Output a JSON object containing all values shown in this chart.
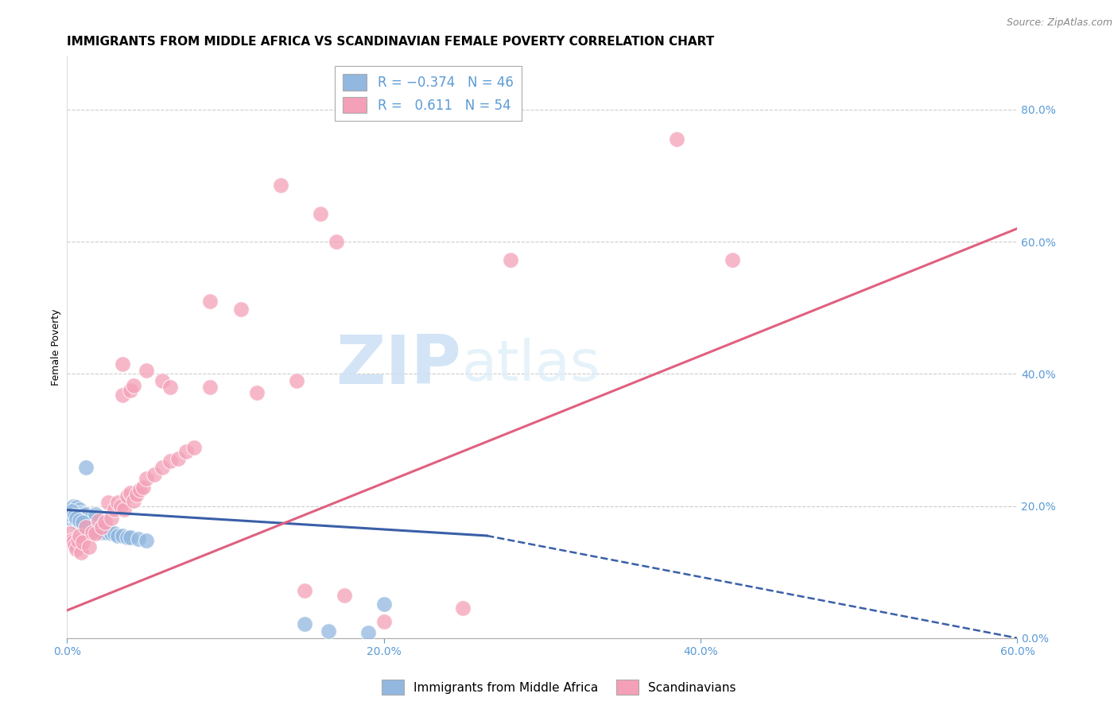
{
  "title": "IMMIGRANTS FROM MIDDLE AFRICA VS SCANDINAVIAN FEMALE POVERTY CORRELATION CHART",
  "source": "Source: ZipAtlas.com",
  "ylabel": "Female Poverty",
  "xlim": [
    0.0,
    0.6
  ],
  "ylim": [
    0.0,
    0.88
  ],
  "ytick_right_values": [
    0.0,
    0.2,
    0.4,
    0.6,
    0.8
  ],
  "ytick_right_labels": [
    "0.0%",
    "20.0%",
    "40.0%",
    "60.0%",
    "80.0%"
  ],
  "xtick_values": [
    0.0,
    0.2,
    0.4,
    0.6
  ],
  "xtick_labels": [
    "0.0%",
    "20.0%",
    "40.0%",
    "60.0%"
  ],
  "watermark_zip": "ZIP",
  "watermark_atlas": "atlas",
  "blue_color": "#92b8e0",
  "pink_color": "#f4a0b8",
  "blue_line_color": "#3a5fa8",
  "pink_line_color": "#e06080",
  "blue_dots": [
    [
      0.002,
      0.195
    ],
    [
      0.003,
      0.195
    ],
    [
      0.004,
      0.2
    ],
    [
      0.005,
      0.195
    ],
    [
      0.006,
      0.198
    ],
    [
      0.007,
      0.19
    ],
    [
      0.008,
      0.195
    ],
    [
      0.009,
      0.19
    ],
    [
      0.01,
      0.188
    ],
    [
      0.012,
      0.188
    ],
    [
      0.015,
      0.182
    ],
    [
      0.018,
      0.188
    ],
    [
      0.002,
      0.185
    ],
    [
      0.003,
      0.18
    ],
    [
      0.004,
      0.178
    ],
    [
      0.005,
      0.18
    ],
    [
      0.006,
      0.175
    ],
    [
      0.007,
      0.178
    ],
    [
      0.008,
      0.172
    ],
    [
      0.01,
      0.17
    ],
    [
      0.012,
      0.165
    ],
    [
      0.014,
      0.168
    ],
    [
      0.016,
      0.165
    ],
    [
      0.018,
      0.162
    ],
    [
      0.02,
      0.162
    ],
    [
      0.022,
      0.16
    ],
    [
      0.025,
      0.16
    ],
    [
      0.028,
      0.158
    ],
    [
      0.03,
      0.158
    ],
    [
      0.032,
      0.155
    ],
    [
      0.035,
      0.155
    ],
    [
      0.038,
      0.152
    ],
    [
      0.04,
      0.152
    ],
    [
      0.045,
      0.15
    ],
    [
      0.05,
      0.148
    ],
    [
      0.012,
      0.258
    ],
    [
      0.002,
      0.188
    ],
    [
      0.003,
      0.192
    ],
    [
      0.005,
      0.185
    ],
    [
      0.006,
      0.182
    ],
    [
      0.008,
      0.178
    ],
    [
      0.01,
      0.175
    ],
    [
      0.15,
      0.022
    ],
    [
      0.2,
      0.052
    ],
    [
      0.165,
      0.01
    ],
    [
      0.19,
      0.008
    ]
  ],
  "pink_dots": [
    [
      0.002,
      0.158
    ],
    [
      0.003,
      0.148
    ],
    [
      0.004,
      0.145
    ],
    [
      0.005,
      0.14
    ],
    [
      0.006,
      0.135
    ],
    [
      0.007,
      0.148
    ],
    [
      0.008,
      0.155
    ],
    [
      0.009,
      0.13
    ],
    [
      0.01,
      0.145
    ],
    [
      0.012,
      0.168
    ],
    [
      0.014,
      0.138
    ],
    [
      0.016,
      0.16
    ],
    [
      0.018,
      0.158
    ],
    [
      0.02,
      0.178
    ],
    [
      0.022,
      0.168
    ],
    [
      0.024,
      0.175
    ],
    [
      0.026,
      0.205
    ],
    [
      0.028,
      0.182
    ],
    [
      0.03,
      0.195
    ],
    [
      0.032,
      0.205
    ],
    [
      0.034,
      0.2
    ],
    [
      0.036,
      0.195
    ],
    [
      0.038,
      0.215
    ],
    [
      0.04,
      0.22
    ],
    [
      0.042,
      0.208
    ],
    [
      0.044,
      0.218
    ],
    [
      0.046,
      0.225
    ],
    [
      0.048,
      0.228
    ],
    [
      0.05,
      0.242
    ],
    [
      0.055,
      0.248
    ],
    [
      0.06,
      0.258
    ],
    [
      0.065,
      0.268
    ],
    [
      0.07,
      0.272
    ],
    [
      0.075,
      0.282
    ],
    [
      0.08,
      0.288
    ],
    [
      0.035,
      0.368
    ],
    [
      0.04,
      0.375
    ],
    [
      0.042,
      0.382
    ],
    [
      0.06,
      0.39
    ],
    [
      0.065,
      0.38
    ],
    [
      0.09,
      0.38
    ],
    [
      0.035,
      0.415
    ],
    [
      0.05,
      0.405
    ],
    [
      0.09,
      0.51
    ],
    [
      0.11,
      0.498
    ],
    [
      0.12,
      0.372
    ],
    [
      0.145,
      0.39
    ],
    [
      0.17,
      0.6
    ],
    [
      0.28,
      0.572
    ],
    [
      0.135,
      0.685
    ],
    [
      0.16,
      0.642
    ],
    [
      0.385,
      0.755
    ],
    [
      0.42,
      0.572
    ],
    [
      0.15,
      0.072
    ],
    [
      0.175,
      0.065
    ],
    [
      0.2,
      0.025
    ],
    [
      0.25,
      0.045
    ]
  ],
  "blue_solid_line": {
    "x0": 0.0,
    "x1": 0.265,
    "y0": 0.194,
    "y1": 0.155
  },
  "blue_dashed_line": {
    "x0": 0.265,
    "x1": 0.6,
    "y0": 0.155,
    "y1": 0.0
  },
  "pink_line": {
    "x0": 0.0,
    "x1": 0.6,
    "y0": 0.042,
    "y1": 0.62
  },
  "background_color": "#ffffff",
  "grid_color": "#cccccc",
  "axis_color": "#5b9bd5",
  "title_fontsize": 11,
  "source_fontsize": 9
}
